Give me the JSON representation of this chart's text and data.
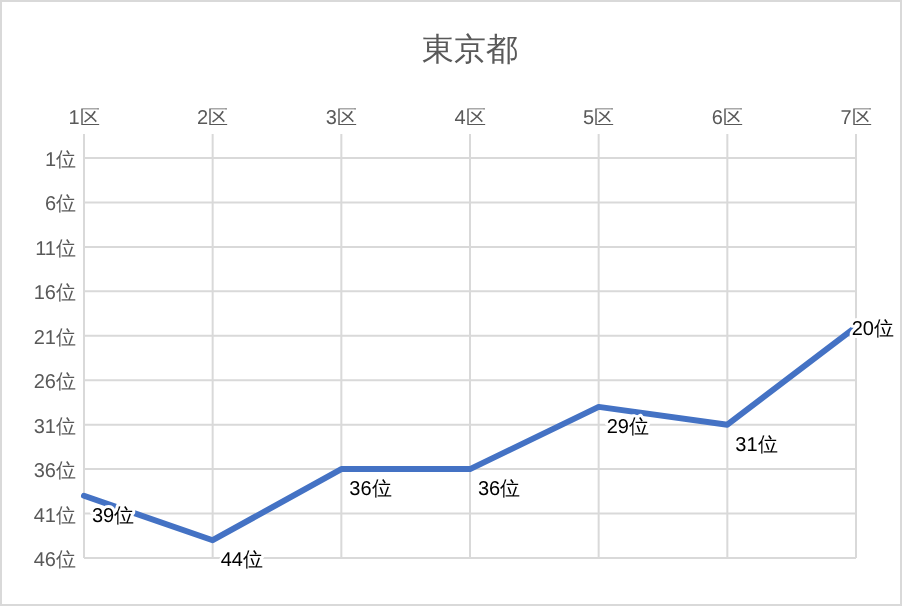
{
  "chart_data": {
    "type": "line",
    "title": "東京都",
    "categories": [
      "1区",
      "2区",
      "3区",
      "4区",
      "5区",
      "6区",
      "7区"
    ],
    "series": [
      {
        "color": "#4472c4",
        "values": [
          39,
          44,
          36,
          36,
          29,
          31,
          20
        ],
        "value_labels": [
          "39位",
          "44位",
          "36位",
          "36位",
          "29位",
          "31位",
          "20位"
        ]
      }
    ],
    "ylim": [
      46,
      1
    ],
    "yticks": [
      {
        "value": 1,
        "label": "1位"
      },
      {
        "value": 6,
        "label": "6位"
      },
      {
        "value": 11,
        "label": "11位"
      },
      {
        "value": 16,
        "label": "16位"
      },
      {
        "value": 21,
        "label": "21位"
      },
      {
        "value": 26,
        "label": "26位"
      },
      {
        "value": 31,
        "label": "31位"
      },
      {
        "value": 36,
        "label": "36位"
      },
      {
        "value": 41,
        "label": "41位"
      },
      {
        "value": 46,
        "label": "46位"
      }
    ],
    "grid": true,
    "marker": "none",
    "line_style": "solid"
  }
}
